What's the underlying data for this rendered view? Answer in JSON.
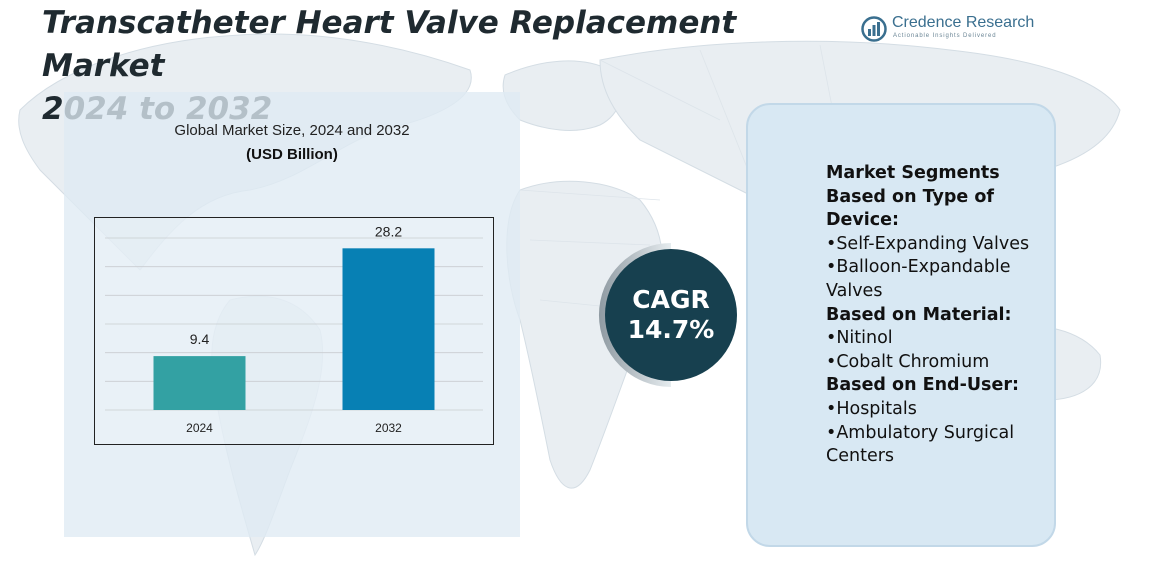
{
  "page": {
    "title_line1": "Transcatheter Heart Valve Replacement Market",
    "title_line2": "2024 to 2032"
  },
  "logo": {
    "name": "Credence Research",
    "tagline": "Actionable Insights Delivered"
  },
  "chart": {
    "title": "Global Market Size, 2024 and 2032",
    "unit": "(USD Billion)"
  },
  "chart_data": {
    "type": "bar",
    "title": "Global Market Size, 2024 and 2032",
    "ylabel": "(USD Billion)",
    "categories": [
      "2024",
      "2032"
    ],
    "values": [
      9.4,
      28.2
    ],
    "labels": [
      "9.4",
      "28.2"
    ],
    "colors": [
      "#33a1a3",
      "#0780b4"
    ],
    "ylim": [
      0,
      30
    ],
    "grid": true
  },
  "cagr": {
    "label": "CAGR",
    "value": "14.7%"
  },
  "segments": [
    {
      "kind": "head",
      "text": "Market Segments Based on Type of Device:"
    },
    {
      "kind": "item",
      "text": "•Self-Expanding Valves"
    },
    {
      "kind": "item",
      "text": "•Balloon-Expandable Valves"
    },
    {
      "kind": "head",
      "text": "Based on Material:"
    },
    {
      "kind": "item",
      "text": "•Nitinol"
    },
    {
      "kind": "item",
      "text": "•Cobalt Chromium"
    },
    {
      "kind": "head",
      "text": "Based on End-User:"
    },
    {
      "kind": "item",
      "text": "•Hospitals"
    },
    {
      "kind": "item",
      "text": "•Ambulatory Surgical Centers"
    }
  ],
  "colors": {
    "accent_teal": "#33a1a3",
    "accent_blue": "#0780b4",
    "cagr_circle": "#17404f",
    "panel_bg": "#d8e8f3"
  }
}
